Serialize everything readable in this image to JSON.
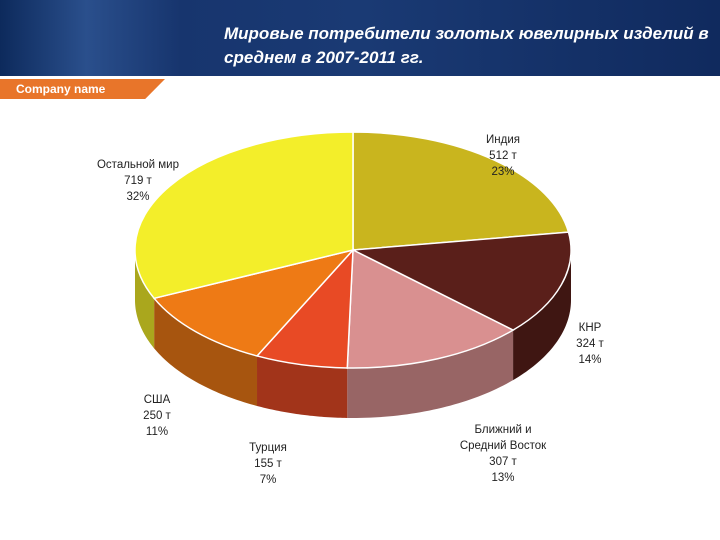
{
  "company_name": "Company name",
  "chart_data": {
    "type": "pie",
    "title": "Мировые потребители золотых ювелирных изделий в среднем в 2007-2011 гг.",
    "categories": [
      "Индия",
      "КНР",
      "Ближний и Средний Восток",
      "Турция",
      "США",
      "Остальной мир"
    ],
    "values": [
      512,
      324,
      307,
      155,
      250,
      719
    ],
    "value_labels": [
      "512 т",
      "324 т",
      "307 т",
      "155 т",
      "250 т",
      "719 т"
    ],
    "shares": [
      23,
      14,
      13,
      7,
      11,
      32
    ],
    "share_labels": [
      "23%",
      "14%",
      "13%",
      "7%",
      "11%",
      "32%"
    ],
    "colors": [
      "#c9b51e",
      "#5a1f1a",
      "#d99090",
      "#e84a25",
      "#ee7a15",
      "#f3ee2a"
    ]
  }
}
